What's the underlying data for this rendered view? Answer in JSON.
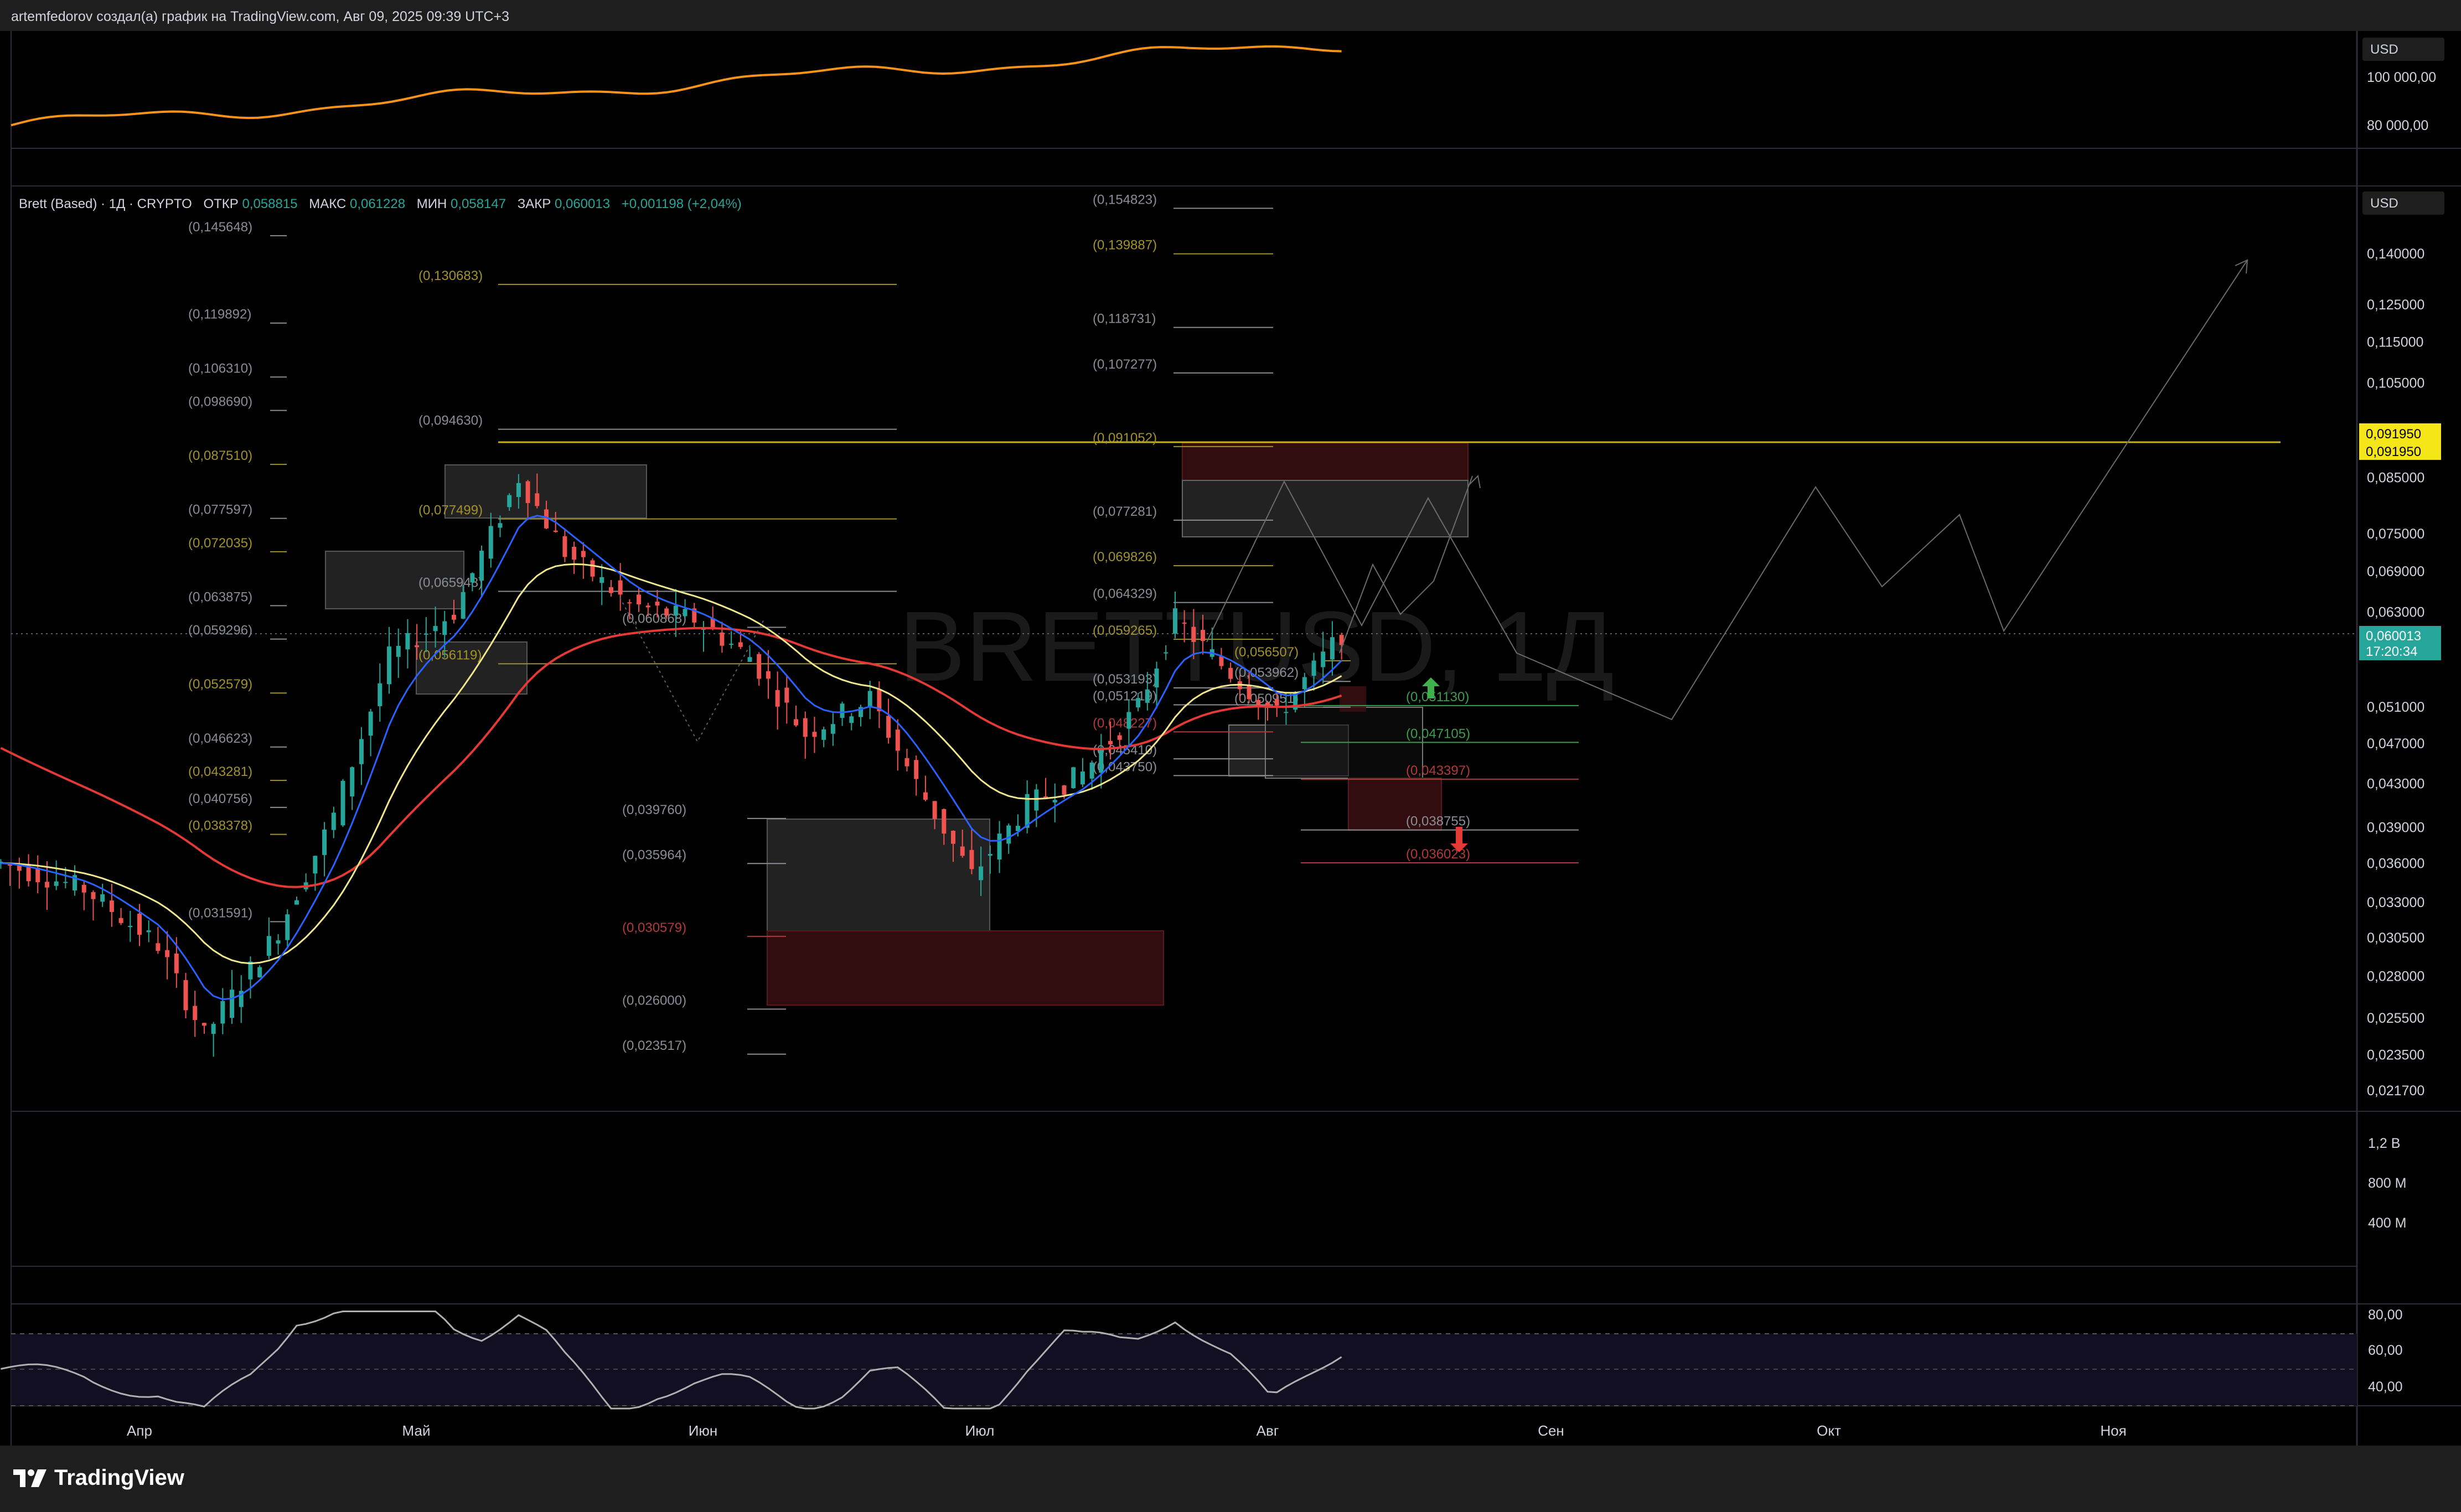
{
  "header": {
    "text": "artemfedorov создал(а) график на TradingView.com, Авг 09, 2025 09:39 UTC+3"
  },
  "brand": {
    "name": "TradingView"
  },
  "watermark": "BRETTUSD, 1Д",
  "colors": {
    "up": "#26a69a",
    "down": "#ef5350",
    "ema_fast": "#2962ff",
    "ema_mid": "#f0e68c",
    "ema_slow": "#e53935",
    "btc": "#f7931a",
    "level": "#c9b21a",
    "price_tag": "#26a69a"
  },
  "top_panel": {
    "currency": "USD",
    "ticks": [
      "100 000,00",
      "80 000,00"
    ]
  },
  "legend": {
    "symbol": "Brett (Based) · 1Д · CRYPTO",
    "open_label": "ОТКР",
    "open": "0,058815",
    "high_label": "МАКС",
    "high": "0,061228",
    "low_label": "МИН",
    "low": "0,058147",
    "close_label": "ЗАКР",
    "close": "0,060013",
    "change": "+0,001198 (+2,04%)"
  },
  "main_axis": {
    "currency": "USD",
    "ticks": [
      "0,140000",
      "0,125000",
      "0,115000",
      "0,105000",
      "0,085000",
      "0,075000",
      "0,069000",
      "0,063000",
      "0,051000",
      "0,047000",
      "0,043000",
      "0,039000",
      "0,036000",
      "0,033000",
      "0,030500",
      "0,028000",
      "0,025500",
      "0,023500",
      "0,021700"
    ],
    "level_tag_1": "0,091950",
    "level_tag_2": "0,091950",
    "price_tag": "0,060013",
    "countdown": "17:20:34"
  },
  "volume_axis": {
    "ticks": [
      "1,2 B",
      "800 M",
      "400 M"
    ]
  },
  "rsi_axis": {
    "ticks": [
      "80,00",
      "60,00",
      "40,00"
    ]
  },
  "time_axis": {
    "labels": [
      "Апр",
      "Май",
      "Июн",
      "Июл",
      "Авг",
      "Сен",
      "Окт",
      "Ноя"
    ]
  },
  "chart_data": {
    "type": "candlestick",
    "symbol": "BRETTUSD",
    "timeframe": "1D",
    "ohlc": {
      "open": 0.058815,
      "high": 0.061228,
      "low": 0.058147,
      "close": 0.060013
    },
    "ylim": [
      0.0217,
      0.145
    ],
    "y_scale": "log",
    "x_range": [
      "2025-03-17",
      "2025-11-30"
    ],
    "last_date": "2025-08-09",
    "horizontal_level": 0.09195,
    "fib_groups": [
      {
        "labels": [
          "(0,145648)",
          "(0,119892)",
          "(0,106310)",
          "(0,098690)",
          "(0,087510)",
          "(0,077597)",
          "(0,072035)",
          "(0,063875)",
          "(0,059296)",
          "(0,052579)",
          "(0,046623)",
          "(0,043281)",
          "(0,040756)",
          "(0,038378)",
          "(0,031591)"
        ],
        "values": [
          0.145648,
          0.119892,
          0.10631,
          0.09869,
          0.08751,
          0.077597,
          0.072035,
          0.063875,
          0.059296,
          0.052579,
          0.046623,
          0.043281,
          0.040756,
          0.038378,
          0.031591
        ],
        "tones": [
          "gray",
          "gray",
          "gray",
          "gray",
          "gold",
          "gray",
          "gold",
          "gray",
          "gray",
          "gold",
          "gray",
          "gold",
          "gray",
          "gold",
          "gray"
        ]
      },
      {
        "labels": [
          "(0,130683)",
          "(0,094630)",
          "(0,077499)",
          "(0,065948)",
          "(0,056119)"
        ],
        "values": [
          0.130683,
          0.09463,
          0.077499,
          0.065948,
          0.056119
        ],
        "tones": [
          "gold",
          "gray",
          "gold",
          "gray",
          "gold"
        ]
      },
      {
        "labels": [
          "(0,060868)",
          "(0,039760)",
          "(0,035964)",
          "(0,030579)",
          "(0,026000)",
          "(0,023517)"
        ],
        "values": [
          0.060868,
          0.03976,
          0.035964,
          0.030579,
          0.026,
          0.023517
        ],
        "tones": [
          "gray",
          "gray",
          "gray",
          "red",
          "gray",
          "gray"
        ]
      },
      {
        "labels": [
          "(0,154823)",
          "(0,139887)",
          "(0,118731)",
          "(0,107277)",
          "(0,091052)",
          "(0,077281)",
          "(0,069826)",
          "(0,064329)",
          "(0,059265)",
          "(0,053193)",
          "(0,051219)",
          "(0,048227)",
          "(0,045410)",
          "(0,043750)"
        ],
        "values": [
          0.154823,
          0.139887,
          0.118731,
          0.107277,
          0.091052,
          0.077281,
          0.069826,
          0.064329,
          0.059265,
          0.053193,
          0.051219,
          0.048227,
          0.04541,
          0.04375
        ],
        "tones": [
          "gray",
          "gold",
          "gray",
          "gray",
          "gold",
          "gray",
          "gold",
          "gray",
          "gold",
          "gray",
          "gray",
          "red",
          "gray",
          "gray"
        ]
      },
      {
        "labels": [
          "(0,056507)",
          "(0,053962)",
          "(0,050951)"
        ],
        "values": [
          0.056507,
          0.053962,
          0.050951
        ],
        "tones": [
          "gold",
          "gray",
          "gray"
        ]
      },
      {
        "labels": [
          "(0,051130)",
          "(0,047105)",
          "(0,043397)",
          "(0,038755)",
          "(0,036023)"
        ],
        "values": [
          0.05113,
          0.047105,
          0.043397,
          0.038755,
          0.036023
        ],
        "tones": [
          "green",
          "green",
          "red",
          "gray",
          "red"
        ]
      }
    ]
  }
}
